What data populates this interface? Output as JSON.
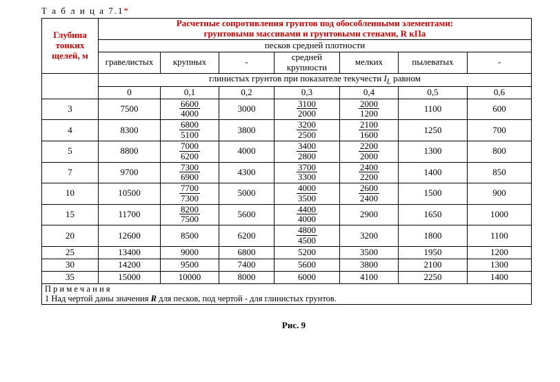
{
  "caption_prefix": "Т а б л и ц а 7.1",
  "caption_star": "*",
  "title_line1": "Расчетные сопротивления грунтов под обособленными элементами:",
  "title_line2": "грунтовыми массивами и грунтовыми стенами, R кПа",
  "left_header": "Глубина тонких щелей, м",
  "sub_header": "песков средней плотности",
  "columns": {
    "c1": "гравелистых",
    "c2": "крупных",
    "c3": "-",
    "c4_a": "средней",
    "c4_b": "крупности",
    "c5": "мелких",
    "c6": "пылеватых",
    "c7": "-"
  },
  "clay_header_a": "глинистых грунтов при показателе текучести ",
  "clay_header_iL": "I",
  "clay_header_sub": "L",
  "clay_header_b": " равном",
  "idx": {
    "i0": "0",
    "i1": "0,1",
    "i2": "0,2",
    "i3": "0,3",
    "i4": "0,4",
    "i5": "0,5",
    "i6": "0,6"
  },
  "rows": [
    {
      "d": "3",
      "v": [
        {
          "s": "7500"
        },
        {
          "t": "6600",
          "b": "4000"
        },
        {
          "s": "3000"
        },
        {
          "t": "3100",
          "b": "2000"
        },
        {
          "t": "2000",
          "b": "1200"
        },
        {
          "s": "1100"
        },
        {
          "s": "600"
        }
      ]
    },
    {
      "d": "4",
      "v": [
        {
          "s": "8300"
        },
        {
          "t": "6800",
          "b": "5100"
        },
        {
          "s": "3800"
        },
        {
          "t": "3200",
          "b": "2500"
        },
        {
          "t": "2100",
          "b": "1600"
        },
        {
          "s": "1250"
        },
        {
          "s": "700"
        }
      ]
    },
    {
      "d": "5",
      "v": [
        {
          "s": "8800"
        },
        {
          "t": "7000",
          "b": "6200"
        },
        {
          "s": "4000"
        },
        {
          "t": "3400",
          "b": "2800"
        },
        {
          "t": "2200",
          "b": "2000"
        },
        {
          "s": "1300"
        },
        {
          "s": "800"
        }
      ]
    },
    {
      "d": "7",
      "v": [
        {
          "s": "9700"
        },
        {
          "t": "7300",
          "b": "6900"
        },
        {
          "s": "4300"
        },
        {
          "t": "3700",
          "b": "3300"
        },
        {
          "t": "2400",
          "b": "2200"
        },
        {
          "s": "1400"
        },
        {
          "s": "850"
        }
      ]
    },
    {
      "d": "10",
      "v": [
        {
          "s": "10500"
        },
        {
          "t": "7700",
          "b": "7300"
        },
        {
          "s": "5000"
        },
        {
          "t": "4000",
          "b": "3500"
        },
        {
          "t": "2600",
          "b": "2400"
        },
        {
          "s": "1500"
        },
        {
          "s": "900"
        }
      ]
    },
    {
      "d": "15",
      "v": [
        {
          "s": "11700"
        },
        {
          "t": "8200",
          "b": "7500"
        },
        {
          "s": "5600"
        },
        {
          "t": "4400",
          "b": "4000"
        },
        {
          "s": "2900"
        },
        {
          "s": "1650"
        },
        {
          "s": "1000"
        }
      ]
    },
    {
      "d": "20",
      "v": [
        {
          "s": "12600"
        },
        {
          "s": "8500"
        },
        {
          "s": "6200"
        },
        {
          "t": "4800",
          "b": "4500"
        },
        {
          "s": "3200"
        },
        {
          "s": "1800"
        },
        {
          "s": "1100"
        }
      ]
    },
    {
      "d": "25",
      "v": [
        {
          "s": "13400"
        },
        {
          "s": "9000"
        },
        {
          "s": "6800"
        },
        {
          "s": "5200"
        },
        {
          "s": "3500"
        },
        {
          "s": "1950"
        },
        {
          "s": "1200"
        }
      ]
    },
    {
      "d": "30",
      "v": [
        {
          "s": "14200"
        },
        {
          "s": "9500"
        },
        {
          "s": "7400"
        },
        {
          "s": "5600"
        },
        {
          "s": "3800"
        },
        {
          "s": "2100"
        },
        {
          "s": "1300"
        }
      ]
    },
    {
      "d": "35",
      "v": [
        {
          "s": "15000"
        },
        {
          "s": "10000"
        },
        {
          "s": "8000"
        },
        {
          "s": "6000"
        },
        {
          "s": "4100"
        },
        {
          "s": "2250"
        },
        {
          "s": "1400"
        }
      ]
    }
  ],
  "note_title": "П р и м е ч а н и я",
  "note_text_a": "1 Над чертой даны значения ",
  "note_R": "R",
  "note_text_b": " для песков, под чертой - для глинистых грунтов.",
  "figure": "Рис. 9",
  "colors": {
    "red": "#c00000",
    "text": "#000000",
    "bg": "#ffffff"
  }
}
